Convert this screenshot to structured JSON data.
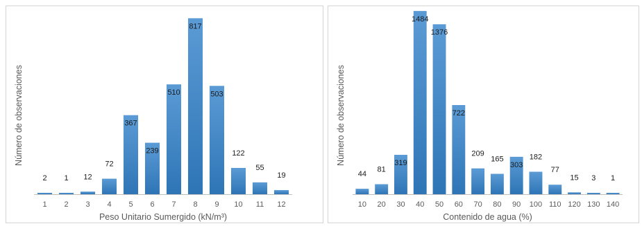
{
  "colors": {
    "bar_top": "#5b9bd5",
    "bar_bottom": "#2e75b6",
    "axis_line": "#bfbfbf",
    "label_text": "#595959"
  },
  "chart_data": [
    {
      "type": "bar",
      "title": "",
      "xlabel": "Peso Unitario Sumergido (kN/m³)",
      "ylabel": "Número de observaciones",
      "categories": [
        "1",
        "2",
        "3",
        "4",
        "5",
        "6",
        "7",
        "8",
        "9",
        "10",
        "11",
        "12"
      ],
      "values": [
        2,
        1,
        12,
        72,
        367,
        239,
        510,
        817,
        503,
        122,
        55,
        19
      ],
      "ylim": [
        0,
        860
      ],
      "grid": false,
      "legend": "none"
    },
    {
      "type": "bar",
      "title": "",
      "xlabel": "Contenido de agua (%)",
      "ylabel": "Número de observaciones",
      "categories": [
        "10",
        "20",
        "30",
        "40",
        "50",
        "60",
        "70",
        "80",
        "90",
        "100",
        "110",
        "120",
        "130",
        "140"
      ],
      "values": [
        44,
        81,
        319,
        1484,
        1376,
        722,
        209,
        165,
        303,
        182,
        77,
        15,
        3,
        1
      ],
      "ylim": [
        0,
        1500
      ],
      "grid": false,
      "legend": "none"
    }
  ]
}
